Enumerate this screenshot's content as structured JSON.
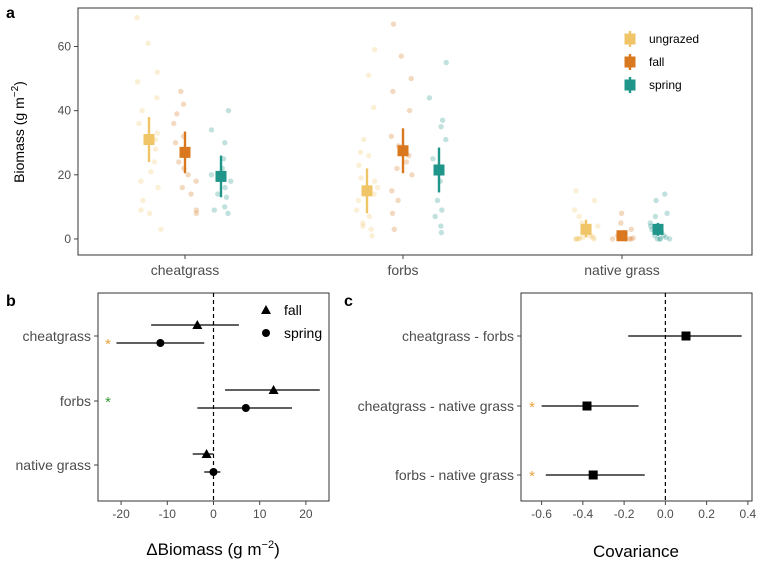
{
  "figure": {
    "panel_labels": [
      "a",
      "b",
      "c"
    ]
  },
  "colors": {
    "ungrazed": "#f0c567",
    "fall": "#d9781f",
    "spring": "#20958a",
    "asterisk_orange": "#e8a33d",
    "asterisk_green": "#3a9a3a",
    "black": "#000000"
  },
  "chart_data": [
    {
      "panel": "a",
      "type": "scatter",
      "title": "",
      "xlabel": "",
      "ylabel": "Biomass (g m⁻²)",
      "ylabel_parts": {
        "main": "Biomass (g m",
        "sup": "−2",
        "end": ")"
      },
      "ylim": [
        -5,
        72
      ],
      "yticks": [
        0,
        20,
        40,
        60
      ],
      "categories": [
        "cheatgrass",
        "forbs",
        "native grass"
      ],
      "legend": {
        "position": "top-right",
        "entries": [
          "ungrazed",
          "fall",
          "spring"
        ]
      },
      "grid": false,
      "series": [
        {
          "name": "ungrazed",
          "color": "#f0c567",
          "means": [
            31,
            15,
            3
          ],
          "lower": [
            24,
            8,
            0.5
          ],
          "upper": [
            38,
            22,
            6
          ],
          "points": [
            [
              69,
              61,
              52,
              49,
              44,
              40,
              36,
              33,
              31,
              28,
              24,
              21,
              18,
              16,
              12,
              9,
              8,
              3
            ],
            [
              59,
              51,
              41,
              31,
              27,
              26,
              23,
              19,
              18,
              16,
              14,
              12,
              9,
              7,
              5,
              4,
              3,
              1
            ],
            [
              15,
              12,
              9,
              7,
              5,
              4,
              3,
              2,
              1,
              1,
              0.5,
              0.3,
              0.2,
              0.1,
              0,
              0,
              0,
              0
            ]
          ]
        },
        {
          "name": "fall",
          "color": "#d9781f",
          "means": [
            27,
            27.5,
            1
          ],
          "lower": [
            20.5,
            20.5,
            0
          ],
          "upper": [
            33.5,
            34.5,
            2
          ],
          "points": [
            [
              46,
              42,
              39,
              36,
              32,
              30,
              28,
              26,
              24,
              22,
              20,
              18,
              16,
              14,
              9,
              8
            ],
            [
              67,
              57,
              50,
              46,
              40,
              32,
              29,
              26,
              24,
              22,
              20,
              15,
              12,
              8,
              3
            ],
            [
              8,
              5,
              3,
              2,
              1,
              1,
              0.5,
              0.3,
              0,
              0,
              0,
              0
            ]
          ]
        },
        {
          "name": "spring",
          "color": "#20958a",
          "means": [
            19.5,
            21.5,
            3
          ],
          "lower": [
            13,
            14.5,
            1
          ],
          "upper": [
            26,
            28.5,
            5
          ],
          "points": [
            [
              40,
              34,
              30,
              25,
              22,
              20,
              18,
              16,
              14,
              13,
              10,
              9,
              8
            ],
            [
              55,
              44,
              37,
              35,
              31,
              25,
              22,
              18,
              12,
              9,
              7,
              4,
              2
            ],
            [
              14,
              12,
              8,
              7,
              5,
              4,
              3,
              2,
              1,
              1,
              0.5,
              0,
              0,
              0,
              0
            ]
          ]
        }
      ]
    },
    {
      "panel": "b",
      "type": "scatter",
      "title": "",
      "xlabel_parts": {
        "main": "ΔBiomass (g m",
        "sup": "−2",
        "end": ")"
      },
      "ylabel": "",
      "xlim": [
        -25,
        25
      ],
      "xticks": [
        -20,
        -10,
        0,
        10,
        20
      ],
      "reference_line": 0,
      "categories": [
        "cheatgrass",
        "forbs",
        "native grass"
      ],
      "legend": {
        "position": "top-right",
        "entries": [
          "fall",
          "spring"
        ]
      },
      "series": [
        {
          "name": "fall",
          "marker": "triangle",
          "values": [
            -3.5,
            13,
            -1.5
          ],
          "lower": [
            -13.5,
            2.5,
            -4.5
          ],
          "upper": [
            5.5,
            23,
            0
          ]
        },
        {
          "name": "spring",
          "marker": "circle",
          "values": [
            -11.5,
            7,
            0
          ],
          "lower": [
            -21,
            -3.5,
            -2
          ],
          "upper": [
            -2,
            17,
            1.5
          ]
        }
      ],
      "significance": [
        {
          "category": "cheatgrass",
          "symbol": "*",
          "color": "#e8a33d"
        },
        {
          "category": "forbs",
          "symbol": "*",
          "color": "#3a9a3a"
        }
      ]
    },
    {
      "panel": "c",
      "type": "scatter",
      "title": "",
      "xlabel": "Covariance",
      "ylabel": "",
      "xlim": [
        -0.7,
        0.42
      ],
      "xticks": [
        -0.6,
        -0.4,
        -0.2,
        0.0,
        0.2,
        0.4
      ],
      "xtick_labels": [
        "-0.6",
        "-0.4",
        "-0.2",
        "0.0",
        "0.2",
        "0.4"
      ],
      "reference_line": 0,
      "categories": [
        "cheatgrass - forbs",
        "cheatgrass - native grass",
        "forbs - native grass"
      ],
      "series": [
        {
          "marker": "square",
          "values": [
            0.1,
            -0.38,
            -0.35
          ],
          "lower": [
            -0.18,
            -0.6,
            -0.58
          ],
          "upper": [
            0.37,
            -0.13,
            -0.1
          ]
        }
      ],
      "significance": [
        {
          "category": "cheatgrass - native grass",
          "symbol": "*",
          "color": "#e8a33d"
        },
        {
          "category": "forbs - native grass",
          "symbol": "*",
          "color": "#e8a33d"
        }
      ]
    }
  ]
}
